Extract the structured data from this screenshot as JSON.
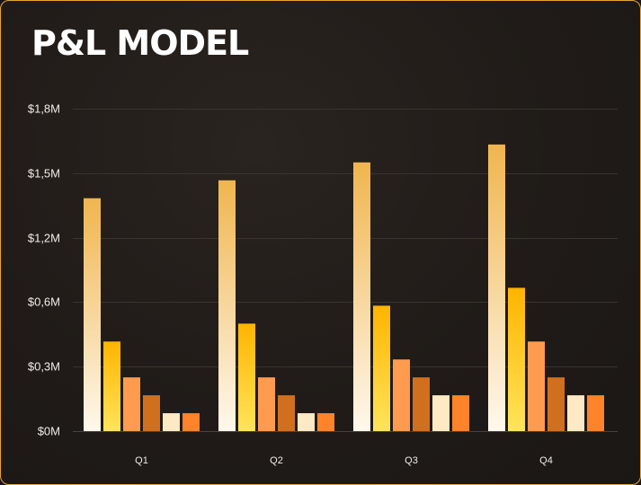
{
  "chart_data": {
    "type": "bar",
    "title": "P&L MODEL",
    "categories": [
      "Q1",
      "Q2",
      "Q3",
      "Q4"
    ],
    "y_ticks": [
      "$0M",
      "$0,3M",
      "$0,6M",
      "$1,2M",
      "$1,5M",
      "$1,8M"
    ],
    "ylim": [
      0,
      1.8
    ],
    "grid": true,
    "legend": "none",
    "series": [
      {
        "values": [
          1.3,
          1.4,
          1.5,
          1.6
        ]
      },
      {
        "values": [
          0.5,
          0.6,
          0.7,
          0.8
        ]
      },
      {
        "values": [
          0.3,
          0.3,
          0.4,
          0.5
        ]
      },
      {
        "values": [
          0.2,
          0.2,
          0.3,
          0.3
        ]
      },
      {
        "values": [
          0.1,
          0.1,
          0.2,
          0.2
        ]
      },
      {
        "values": [
          0.1,
          0.1,
          0.2,
          0.2
        ]
      }
    ],
    "colors": [
      [
        "#f0b54e",
        "#fff8ec"
      ],
      [
        "#ffb400",
        "#ffe45a"
      ],
      [
        "#ff9b4f",
        "#ff9b4f"
      ],
      [
        "#d0701f",
        "#d0701f"
      ],
      [
        "#fde9c3",
        "#fde9c3"
      ],
      [
        "#ff8329",
        "#ff8329"
      ]
    ],
    "border_color": "#e9a531",
    "background_color": "#201b18"
  }
}
